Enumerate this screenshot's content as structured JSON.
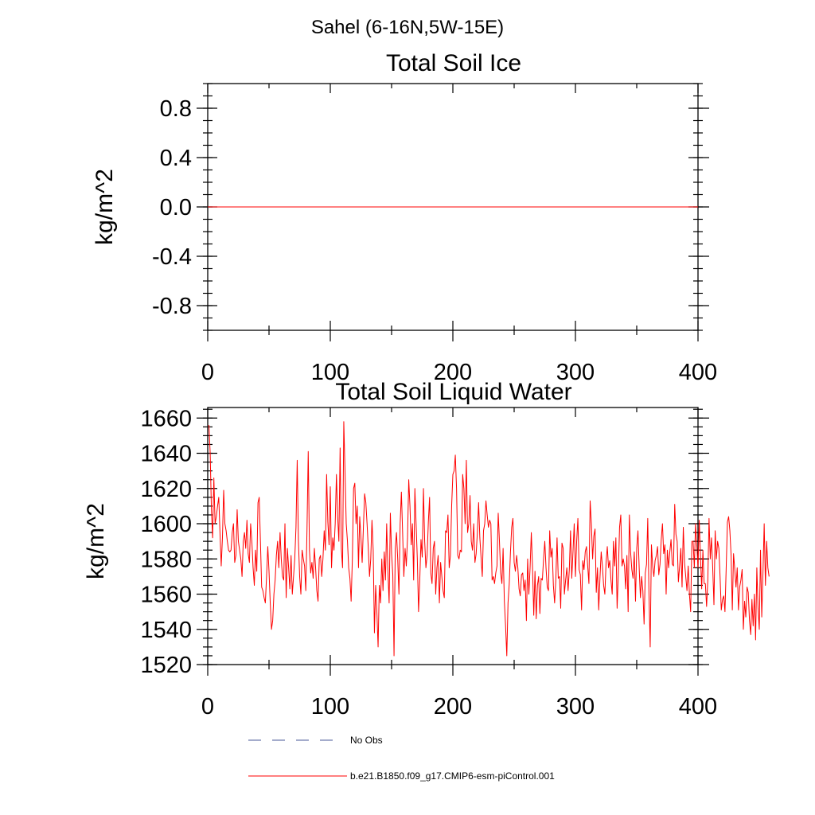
{
  "figure_title": "Sahel (6-16N,5W-15E)",
  "colors": {
    "obs_line": "#4a5a9a",
    "model_line": "#ff0000",
    "axes": "#000000",
    "background": "#ffffff"
  },
  "legend": {
    "placement": "bottom-left, below plots",
    "items": [
      {
        "label": "No Obs",
        "style": "dashed",
        "color": "#4a5a9a"
      },
      {
        "label": "b.e21.B1850.f09_g17.CMIP6-esm-piControl.001",
        "style": "solid",
        "color": "#ff0000"
      }
    ]
  },
  "chart_data": [
    {
      "type": "line",
      "title": "Total Soil Ice",
      "xlabel": "",
      "ylabel": "kg/m^2",
      "xlim": [
        0,
        400
      ],
      "ylim": [
        -1,
        1
      ],
      "xticks": [
        0,
        100,
        200,
        300,
        400
      ],
      "xtick_labels": [
        "0",
        "100",
        "200",
        "300",
        "400"
      ],
      "yticks": [
        -0.8,
        -0.4,
        0.0,
        0.4,
        0.8
      ],
      "ytick_labels": [
        "-0.8",
        "-0.4",
        "0.0",
        "0.4",
        "0.8"
      ],
      "grid": false,
      "series": [
        {
          "name": "b.e21.B1850.f09_g17.CMIP6-esm-piControl.001",
          "color": "#ff0000",
          "x": [
            0,
            400
          ],
          "values": [
            0,
            0
          ]
        }
      ]
    },
    {
      "type": "line",
      "title": "Total Soil Liquid Water",
      "xlabel": "",
      "ylabel": "kg/m^2",
      "xlim": [
        0,
        400
      ],
      "ylim": [
        1520,
        1666
      ],
      "xticks": [
        0,
        100,
        200,
        300,
        400
      ],
      "xtick_labels": [
        "0",
        "100",
        "200",
        "300",
        "400"
      ],
      "yticks": [
        1520,
        1540,
        1560,
        1580,
        1600,
        1620,
        1640,
        1660
      ],
      "ytick_labels": [
        "1520",
        "1540",
        "1560",
        "1580",
        "1600",
        "1620",
        "1640",
        "1660"
      ],
      "grid": false,
      "series": [
        {
          "name": "b.e21.B1850.f09_g17.CMIP6-esm-piControl.001",
          "color": "#ff0000",
          "x_start": 1,
          "x_step": 1,
          "values": [
            1656,
            1640,
            1608,
            1592,
            1626,
            1600,
            1604,
            1610,
            1615,
            1595,
            1576,
            1592,
            1619,
            1600,
            1596,
            1590,
            1585,
            1584,
            1585,
            1595,
            1600,
            1578,
            1582,
            1608,
            1590,
            1585,
            1580,
            1570,
            1590,
            1595,
            1586,
            1602,
            1583,
            1578,
            1600,
            1590,
            1575,
            1565,
            1585,
            1573,
            1612,
            1615,
            1590,
            1564,
            1562,
            1558,
            1555,
            1570,
            1587,
            1573,
            1555,
            1540,
            1545,
            1560,
            1568,
            1582,
            1590,
            1575,
            1595,
            1580,
            1570,
            1568,
            1600,
            1558,
            1586,
            1575,
            1563,
            1582,
            1560,
            1570,
            1580,
            1598,
            1636,
            1590,
            1570,
            1560,
            1585,
            1580,
            1576,
            1562,
            1597,
            1641,
            1585,
            1572,
            1578,
            1569,
            1586,
            1575,
            1562,
            1556,
            1580,
            1582,
            1570,
            1580,
            1596,
            1585,
            1628,
            1601,
            1588,
            1621,
            1575,
            1592,
            1585,
            1600,
            1628,
            1604,
            1590,
            1643,
            1586,
            1575,
            1658,
            1630,
            1600,
            1590,
            1575,
            1569,
            1556,
            1580,
            1620,
            1623,
            1600,
            1610,
            1575,
            1604,
            1592,
            1578,
            1598,
            1617,
            1612,
            1600,
            1586,
            1570,
            1580,
            1602,
            1585,
            1538,
            1565,
            1550,
            1530,
            1565,
            1555,
            1580,
            1562,
            1584,
            1568,
            1600,
            1573,
            1555,
            1606,
            1583,
            1571,
            1525,
            1586,
            1595,
            1580,
            1560,
            1600,
            1618,
            1595,
            1570,
            1586,
            1576,
            1592,
            1625,
            1610,
            1588,
            1600,
            1568,
            1620,
            1600,
            1580,
            1550,
            1568,
            1591,
            1581,
            1620,
            1590,
            1575,
            1582,
            1601,
            1615,
            1572,
            1566,
            1586,
            1590,
            1560,
            1575,
            1582,
            1555,
            1578,
            1570,
            1562,
            1558,
            1596,
            1595,
            1605,
            1575,
            1582,
            1610,
            1628,
            1630,
            1639,
            1620,
            1582,
            1580,
            1585,
            1584,
            1628,
            1620,
            1600,
            1636,
            1595,
            1600,
            1616,
            1590,
            1585,
            1600,
            1578,
            1583,
            1595,
            1612,
            1592,
            1581,
            1570,
            1596,
            1600,
            1613,
            1605,
            1598,
            1602,
            1600,
            1568,
            1570,
            1566,
            1572,
            1576,
            1606,
            1590,
            1572,
            1566,
            1586,
            1556,
            1542,
            1525,
            1555,
            1566,
            1584,
            1598,
            1603,
            1578,
            1573,
            1582,
            1575,
            1563,
            1559,
            1571,
            1572,
            1562,
            1568,
            1545,
            1580,
            1560,
            1575,
            1595,
            1575,
            1548,
            1573,
            1546,
            1565,
            1570,
            1549,
            1569,
            1568,
            1580,
            1590,
            1575,
            1564,
            1562,
            1596,
            1581,
            1586,
            1565,
            1555,
            1568,
            1592,
            1569,
            1570,
            1552,
            1589,
            1586,
            1560,
            1568,
            1575,
            1562,
            1574,
            1596,
            1569,
            1584,
            1600,
            1570,
            1590,
            1603,
            1574,
            1571,
            1551,
            1579,
            1574,
            1584,
            1587,
            1576,
            1566,
            1613,
            1600,
            1580,
            1593,
            1597,
            1561,
            1575,
            1551,
            1569,
            1584,
            1576,
            1565,
            1560,
            1578,
            1587,
            1575,
            1579,
            1568,
            1560,
            1590,
            1576,
            1592,
            1552,
            1572,
            1598,
            1605,
            1576,
            1580,
            1576,
            1563,
            1582,
            1550,
            1605,
            1584,
            1574,
            1569,
            1584,
            1556,
            1586,
            1596,
            1575,
            1558,
            1570,
            1562,
            1543,
            1572,
            1577,
            1603,
            1560,
            1530,
            1588,
            1576,
            1570,
            1579,
            1582,
            1587,
            1571,
            1577,
            1591,
            1600,
            1583,
            1588,
            1560,
            1585,
            1575,
            1584,
            1591,
            1577,
            1576,
            1611,
            1594,
            1590,
            1567,
            1576,
            1586,
            1564,
            1598,
            1578,
            1570,
            1562,
            1576,
            1560,
            1550,
            1590,
            1590,
            1575,
            1600,
            1588,
            1575,
            1602,
            1582,
            1563,
            1585,
            1566,
            1566,
            1553,
            1568,
            1603,
            1580,
            1592,
            1575,
            1554,
            1596,
            1580,
            1590,
            1586,
            1570,
            1551,
            1557,
            1559,
            1550,
            1575,
            1601,
            1604,
            1596,
            1582,
            1551,
            1583,
            1574,
            1564,
            1575,
            1551,
            1564,
            1568,
            1574,
            1540,
            1556,
            1547,
            1564,
            1561,
            1545,
            1537,
            1557,
            1542,
            1560,
            1534,
            1575,
            1552,
            1540,
            1585,
            1547,
            1572,
            1600,
            1565,
            1590,
            1575,
            1570
          ]
        }
      ]
    }
  ]
}
